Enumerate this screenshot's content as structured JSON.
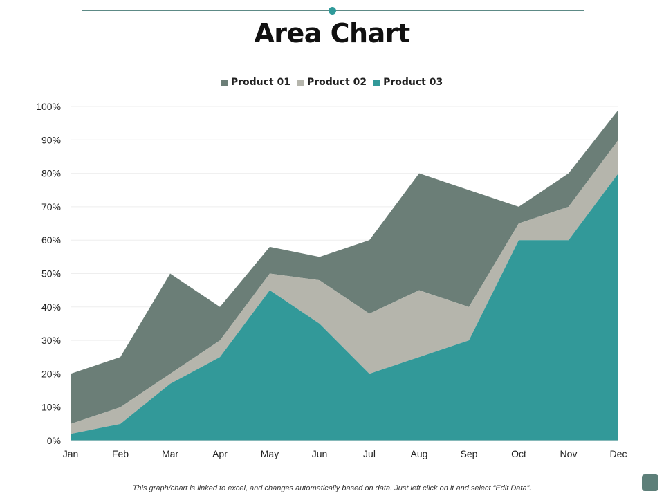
{
  "page": {
    "title": "Area Chart",
    "footer_note": "This graph/chart is linked to excel, and changes automatically based on data. Just left click on it and select “Edit Data”."
  },
  "colors": {
    "product01": "#6b7e77",
    "product02": "#b5b5ac",
    "product03": "#329999",
    "accent": "#2f9a9a",
    "grid": "#eeeeee"
  },
  "chart_data": {
    "type": "area",
    "stacked": true,
    "categories": [
      "Jan",
      "Feb",
      "Mar",
      "Apr",
      "May",
      "Jun",
      "Jul",
      "Aug",
      "Sep",
      "Oct",
      "Nov",
      "Dec"
    ],
    "series": [
      {
        "name": "Product 01",
        "values": [
          15,
          15,
          30,
          10,
          8,
          7,
          22,
          35,
          35,
          5,
          10,
          9
        ]
      },
      {
        "name": "Product 02",
        "values": [
          3,
          5,
          3,
          5,
          5,
          13,
          18,
          20,
          10,
          5,
          10,
          10
        ]
      },
      {
        "name": "Product 03",
        "values": [
          2,
          5,
          17,
          25,
          45,
          35,
          20,
          25,
          30,
          60,
          60,
          80
        ]
      }
    ],
    "ylim": [
      0,
      100
    ],
    "y_ticks": [
      "0%",
      "10%",
      "20%",
      "30%",
      "40%",
      "50%",
      "60%",
      "70%",
      "80%",
      "90%",
      "100%"
    ],
    "grid": true,
    "legend_position": "top"
  }
}
